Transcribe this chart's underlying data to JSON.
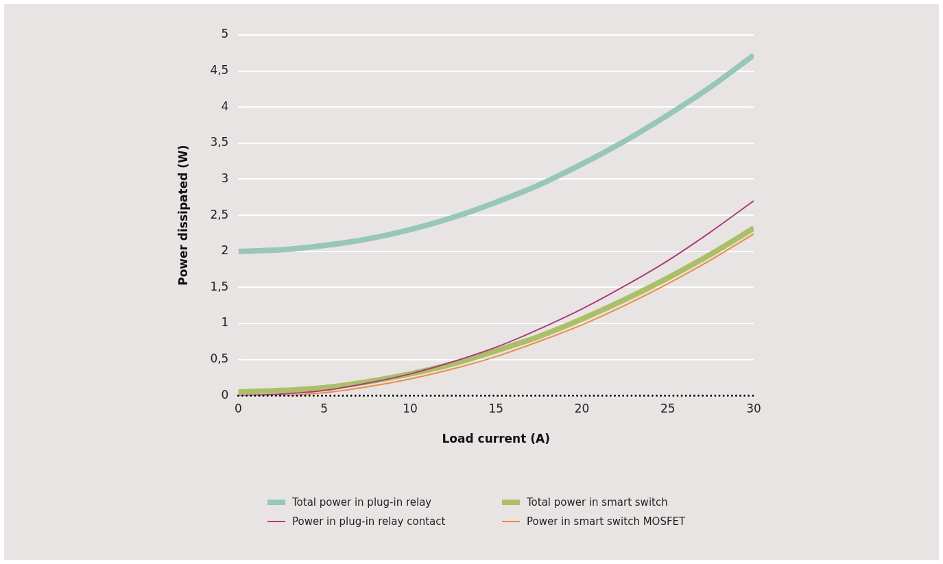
{
  "chart_data": {
    "type": "line",
    "xlabel": "Load current (A)",
    "ylabel": "Power dissipated (W)",
    "x": [
      0,
      2.5,
      5,
      7.5,
      10,
      12.5,
      15,
      17.5,
      20,
      22.5,
      25,
      27.5,
      30
    ],
    "series": [
      {
        "name": "Total power in plug-in relay",
        "color": "#97c7b8",
        "values": [
          2,
          2.02,
          2.08,
          2.17,
          2.3,
          2.47,
          2.68,
          2.92,
          3.21,
          3.53,
          3.89,
          4.28,
          4.72
        ]
      },
      {
        "name": "Total power in smart switch",
        "color": "#abc066",
        "values": [
          0.05,
          0.07,
          0.11,
          0.19,
          0.3,
          0.44,
          0.62,
          0.82,
          1.06,
          1.33,
          1.63,
          1.96,
          2.32
        ]
      },
      {
        "name": "Power in plug-in relay contact",
        "color": "#b03a7e",
        "values": [
          0,
          0.02,
          0.07,
          0.17,
          0.3,
          0.47,
          0.67,
          0.92,
          1.2,
          1.52,
          1.87,
          2.27,
          2.7
        ]
      },
      {
        "name": "Power in smart switch MOSFET",
        "color": "#f08a3c",
        "values": [
          0,
          0,
          0.04,
          0.12,
          0.23,
          0.37,
          0.54,
          0.75,
          0.98,
          1.25,
          1.55,
          1.88,
          2.24
        ]
      }
    ],
    "xlim": [
      0,
      30
    ],
    "xticks": [
      0,
      5,
      10,
      15,
      20,
      25,
      30
    ],
    "ylim": [
      0,
      5
    ],
    "yticks": [
      0,
      {
        "value": 0.5,
        "label": "0,5"
      },
      1,
      {
        "value": 1.5,
        "label": "1,5"
      },
      2,
      {
        "value": 2.5,
        "label": "2,5"
      },
      3,
      {
        "value": 3.5,
        "label": "3,5"
      },
      4,
      {
        "value": 4.5,
        "label": "4,5"
      },
      5
    ],
    "grid": "y",
    "legend": "bottom",
    "marker": "none",
    "line_style": "solid",
    "ref_lines": [
      {
        "axis": "y",
        "value": 0,
        "color": "#000000",
        "line_style": "dotted"
      }
    ]
  }
}
